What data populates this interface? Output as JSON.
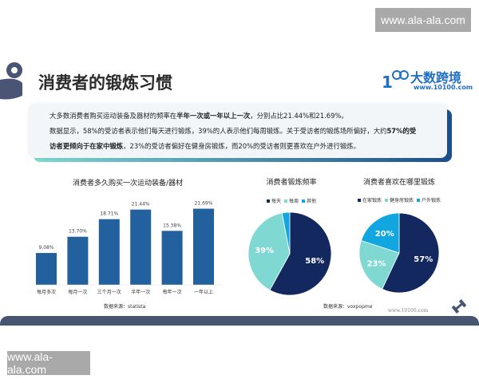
{
  "watermarks": {
    "top": "www.ala-ala.com",
    "bottom": "www.ala-ala.com",
    "site": "www.10100.com"
  },
  "header": {
    "title": "消费者的锻炼习惯",
    "logo_brand": "大数跨境",
    "logo_url": "www.10100.com"
  },
  "summary": {
    "l1a": "大多数消费者购买运动装备及器材的频率在",
    "l1b": "半年一次或一年以上一次",
    "l1c": "，分别占比21.44%和21.69%。",
    "l2a": "数据显示，58%的受访者表示他们每天进行锻炼，39%的人表示他们每周锻炼。关于受访者的锻炼场所偏好，大约",
    "l2b": "57%的受",
    "l3a": "访者更倾向于在家中锻炼",
    "l3b": "，23%的受访者偏好在健身房锻炼，而20%的受访者则更喜欢在户外进行锻炼。"
  },
  "chart_data": [
    {
      "type": "bar",
      "title": "消费者多久购买一次运动装备/器材",
      "categories": [
        "每月多次",
        "每月一次",
        "三个月一次",
        "半年一次",
        "每年一次",
        "一年以上"
      ],
      "values": [
        9.08,
        13.7,
        18.71,
        21.44,
        15.38,
        21.69
      ],
      "labels": [
        "9.08%",
        "13.70%",
        "18.71%",
        "21.44%",
        "15.38%",
        "21.69%"
      ],
      "color": "#22609e",
      "source": "数据来源：statista"
    },
    {
      "type": "pie",
      "title": "消费者锻炼频率",
      "categories": [
        "每天",
        "每周",
        "其他"
      ],
      "values": [
        58,
        39,
        3
      ],
      "labels": [
        "58%",
        "39%",
        ""
      ],
      "colors": [
        "#13285e",
        "#7fd9d2",
        "#12a6e0"
      ],
      "source": "数据来源：voxpopme"
    },
    {
      "type": "pie",
      "title": "消费者喜欢在哪里锻炼",
      "categories": [
        "在家锻炼",
        "健身房锻炼",
        "户外锻炼"
      ],
      "values": [
        57,
        23,
        20
      ],
      "labels": [
        "57%",
        "23%",
        "20%"
      ],
      "colors": [
        "#13285e",
        "#7fd9d2",
        "#12a6e0"
      ]
    }
  ]
}
